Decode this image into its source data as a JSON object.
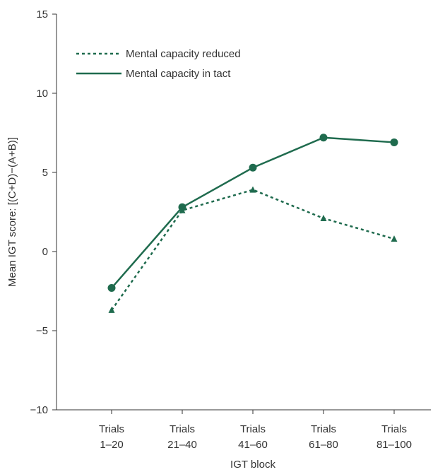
{
  "chart_data": {
    "type": "line",
    "categories": [
      [
        "Trials",
        "1–20"
      ],
      [
        "Trials",
        "21–40"
      ],
      [
        "Trials",
        "41–60"
      ],
      [
        "Trials",
        "61–80"
      ],
      [
        "Trials",
        "81–100"
      ]
    ],
    "xlabel": "IGT block",
    "ylabel": "Mean IGT score: [(C+D)−(A+B)]",
    "ylim": [
      -10,
      15
    ],
    "yticks": [
      "−10",
      "−5",
      "0",
      "5",
      "10",
      "15"
    ],
    "ytick_values": [
      -10,
      -5,
      0,
      5,
      10,
      15
    ],
    "grid": false,
    "legend_position": "top-left",
    "series": [
      {
        "name": "Mental capacity reduced",
        "values": [
          -3.7,
          2.6,
          3.9,
          2.1,
          0.8
        ],
        "line_style": "dotted",
        "marker": "triangle",
        "color": "#1f6b4e"
      },
      {
        "name": "Mental capacity in tact",
        "values": [
          -2.3,
          2.8,
          5.3,
          7.2,
          6.9
        ],
        "line_style": "solid",
        "marker": "circle",
        "color": "#1f6b4e"
      }
    ]
  }
}
